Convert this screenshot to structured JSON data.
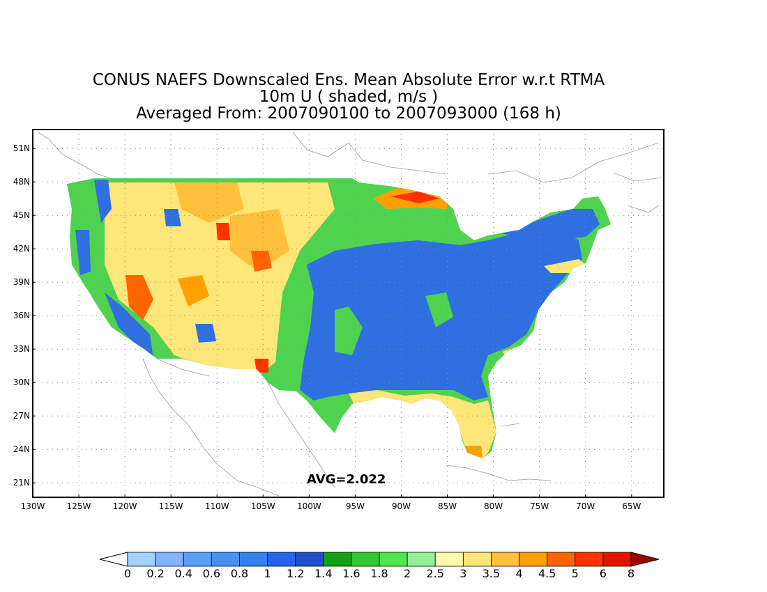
{
  "title": {
    "line1": "CONUS NAEFS Downscaled Ens. Mean Absolute Error w.r.t RTMA",
    "line2": "10m U ( shaded, m/s )",
    "line3": "Averaged From: 2007090100 to 2007093000 (168 h)"
  },
  "map": {
    "lat_labels": [
      "51N",
      "48N",
      "45N",
      "42N",
      "39N",
      "36N",
      "33N",
      "30N",
      "27N",
      "24N",
      "21N"
    ],
    "lon_labels": [
      "130W",
      "125W",
      "120W",
      "115W",
      "110W",
      "105W",
      "100W",
      "95W",
      "90W",
      "85W",
      "80W",
      "75W",
      "70W",
      "65W"
    ],
    "lat_values": [
      51,
      48,
      45,
      42,
      39,
      36,
      33,
      30,
      27,
      24,
      21
    ],
    "lon_values": [
      -130,
      -125,
      -120,
      -115,
      -110,
      -105,
      -100,
      -95,
      -90,
      -85,
      -80,
      -75,
      -70,
      -65
    ],
    "lat_range": [
      19.7,
      52.7
    ],
    "lon_range": [
      -130,
      -61.5
    ],
    "grid": "dotted",
    "avg_label": "AVG=2.022"
  },
  "colorbar": {
    "labels": [
      "0",
      "0.2",
      "0.4",
      "0.6",
      "0.8",
      "1",
      "1.2",
      "1.4",
      "1.6",
      "1.8",
      "2",
      "2.5",
      "3",
      "3.5",
      "4",
      "4.5",
      "5",
      "6",
      "8"
    ],
    "colors": [
      "#a0d2ff",
      "#82b4ff",
      "#5aa0f5",
      "#4691f0",
      "#3282eb",
      "#2864e6",
      "#1e50c8",
      "#14a014",
      "#32c832",
      "#50e650",
      "#96f096",
      "#fffaaa",
      "#ffe678",
      "#ffc03c",
      "#ffa000",
      "#ff6400",
      "#ff3200",
      "#e11400",
      "#c00000"
    ],
    "under_color": "#ffffff",
    "over_color": "#a00000"
  },
  "regions": [
    {
      "type": "blue",
      "color": "#2f6fe0",
      "desc": "central and eastern US low error"
    },
    {
      "type": "green",
      "color": "#4fd24f"
    },
    {
      "type": "yellow",
      "color": "#ffe678"
    },
    {
      "type": "orange",
      "color": "#ffa000"
    },
    {
      "type": "red",
      "color": "#ff3200"
    }
  ]
}
